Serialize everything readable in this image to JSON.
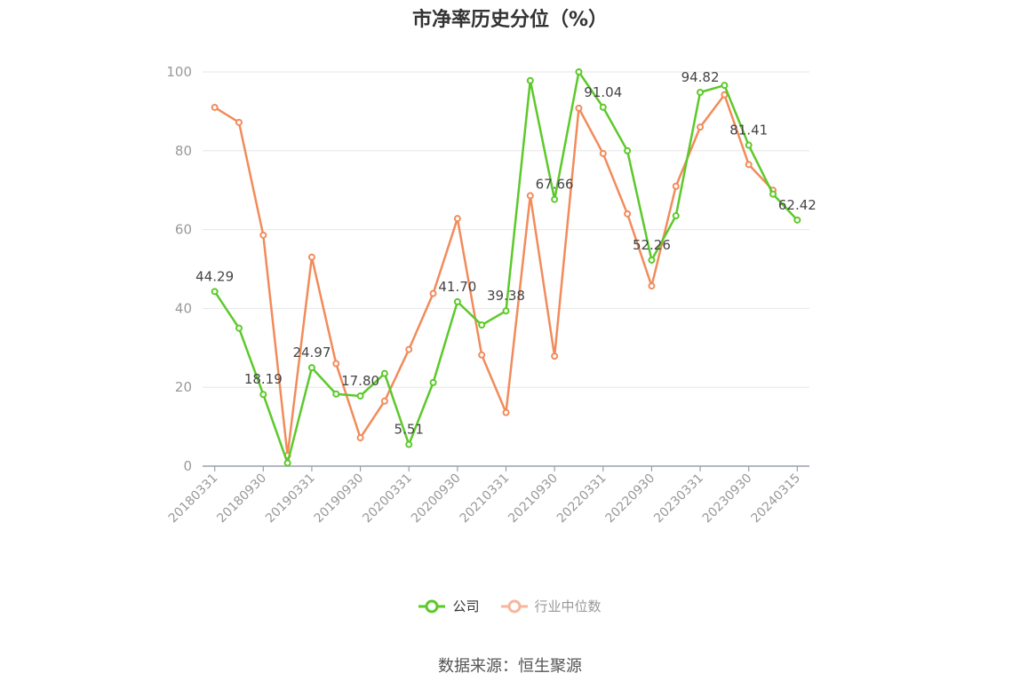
{
  "title": "市净率历史分位（%）",
  "source_text": "数据来源：恒生聚源",
  "colors": {
    "company": "#5cc92a",
    "industry": "#f28b5b",
    "industry_legend": "#f5b79c",
    "grid": "#e6e6e6",
    "axis": "#9aa0ab",
    "tick_text": "#999999"
  },
  "legend": [
    {
      "label": "公司",
      "color": "#5cc92a",
      "active": true
    },
    {
      "label": "行业中位数",
      "color": "#f5b79c",
      "active": false
    }
  ],
  "chart_data": {
    "type": "line",
    "title": "市净率历史分位（%）",
    "ylim": [
      0,
      100
    ],
    "yticks": [
      0,
      20,
      40,
      60,
      80,
      100
    ],
    "grid": true,
    "legend_position": "bottom",
    "xtick_labels": [
      "20180331",
      "20180930",
      "20190331",
      "20190930",
      "20200331",
      "20200930",
      "20210331",
      "20210930",
      "20220331",
      "20220930",
      "20230331",
      "20230930",
      "20240315"
    ],
    "x": [
      "20180331",
      "20180630",
      "20180930",
      "20181231",
      "20190331",
      "20190630",
      "20190930",
      "20191231",
      "20200331",
      "20200630",
      "20200930",
      "20201231",
      "20210331",
      "20210630",
      "20210930",
      "20211231",
      "20220331",
      "20220630",
      "20220930",
      "20221231",
      "20230331",
      "20230630",
      "20230930",
      "20231231",
      "20240315"
    ],
    "series": [
      {
        "name": "公司",
        "values": [
          44.29,
          35.0,
          18.19,
          0.8,
          24.97,
          18.3,
          17.8,
          23.5,
          5.51,
          21.2,
          41.7,
          35.8,
          39.38,
          97.8,
          67.66,
          100.0,
          91.04,
          80.0,
          52.26,
          63.5,
          94.82,
          96.6,
          81.41,
          69.0,
          62.42
        ],
        "labels": [
          "44.29",
          null,
          "18.19",
          null,
          "24.97",
          null,
          "17.80",
          null,
          "5.51",
          null,
          "41.70",
          null,
          "39.38",
          null,
          "67.66",
          null,
          "91.04",
          null,
          "52.26",
          null,
          "94.82",
          null,
          "81.41",
          null,
          "62.42"
        ]
      },
      {
        "name": "行业中位数",
        "values": [
          91.0,
          87.2,
          58.6,
          2.7,
          53.0,
          26.0,
          7.2,
          16.5,
          29.6,
          43.8,
          62.8,
          28.2,
          13.6,
          68.6,
          27.9,
          90.8,
          79.3,
          64.0,
          45.7,
          71.0,
          86.0,
          94.2,
          76.5,
          70.0,
          null
        ]
      }
    ]
  }
}
